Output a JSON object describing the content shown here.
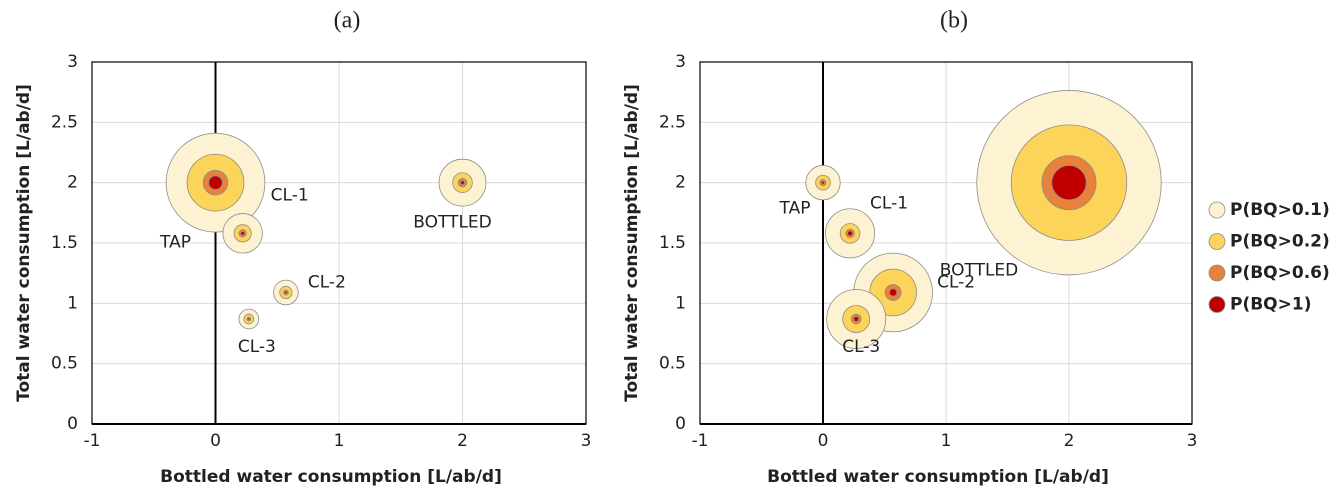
{
  "chart_data": [
    {
      "type": "bubble",
      "title": "(a)",
      "xlabel": "Bottled water consumption [L/ab/d]",
      "ylabel": "Total water consumption [L/ab/d]",
      "labels": [
        "TAP",
        "CL-1",
        "CL-2",
        "CL-3",
        "BOTTLED"
      ],
      "x": [
        0,
        0.22,
        0.57,
        0.27,
        2
      ],
      "y": [
        2,
        1.58,
        1.09,
        0.87,
        2
      ],
      "series": [
        {
          "color": "#fdf2d2",
          "sizes": [
            0.4,
            0.16,
            0.1,
            0.08,
            0.19
          ]
        },
        {
          "color": "#fcd45a",
          "sizes": [
            0.23,
            0.07,
            0.05,
            0.04,
            0.08
          ]
        },
        {
          "color": "#e8823a",
          "sizes": [
            0.1,
            0.03,
            0.02,
            0.016,
            0.035
          ]
        },
        {
          "color": "#c00000",
          "sizes": [
            0.055,
            0.015,
            0.01,
            0.008,
            0.015
          ]
        }
      ],
      "xlim": [
        -1,
        3
      ],
      "ylim": [
        0,
        3
      ],
      "xticks": [
        -1,
        0,
        1,
        2,
        3
      ],
      "yticks": [
        0,
        0.5,
        1,
        1.5,
        2,
        2.5,
        3
      ],
      "grid": true
    },
    {
      "type": "bubble",
      "title": "(b)",
      "xlabel": "Bottled water consumption [L/ab/d]",
      "ylabel": "Total water consumption [L/ab/d]",
      "labels": [
        "TAP",
        "CL-1",
        "CL-2",
        "CL-3",
        "BOTTLED"
      ],
      "x": [
        0,
        0.22,
        0.57,
        0.27,
        2
      ],
      "y": [
        2,
        1.58,
        1.09,
        0.87,
        2
      ],
      "series": [
        {
          "name": "P(BQ>0.1)",
          "color": "#fdf2d2",
          "sizes": [
            0.14,
            0.2,
            0.32,
            0.24,
            0.75
          ]
        },
        {
          "name": "P(BQ>0.2)",
          "color": "#fcd45a",
          "sizes": [
            0.06,
            0.08,
            0.19,
            0.11,
            0.47
          ]
        },
        {
          "name": "P(BQ>0.6)",
          "color": "#e8823a",
          "sizes": [
            0.025,
            0.035,
            0.065,
            0.04,
            0.22
          ]
        },
        {
          "name": "P(BQ>1)",
          "color": "#c00000",
          "sizes": [
            0.012,
            0.02,
            0.03,
            0.02,
            0.14
          ]
        }
      ],
      "xlim": [
        -1,
        3
      ],
      "ylim": [
        0,
        3
      ],
      "xticks": [
        -1,
        0,
        1,
        2,
        3
      ],
      "yticks": [
        0,
        0.5,
        1,
        1.5,
        2,
        2.5,
        3
      ],
      "grid": true,
      "legend": "right"
    }
  ]
}
